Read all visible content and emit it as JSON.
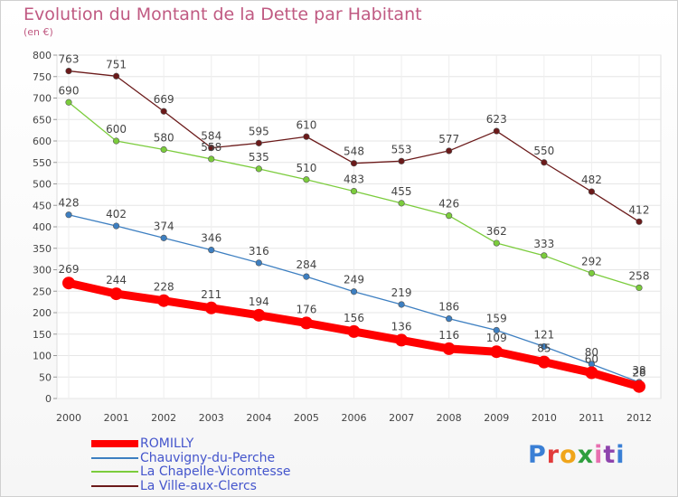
{
  "header": {
    "title": "Evolution du Montant de la Dette par Habitant",
    "subtitle": "(en €)"
  },
  "logo": {
    "text": "Proxiti",
    "colors": [
      "#3a7fd5",
      "#e23b3b",
      "#f0a51a",
      "#2e9e3e",
      "#e86fb0",
      "#8e44ad",
      "#3a7fd5"
    ]
  },
  "chart_data": {
    "type": "line",
    "title": "Evolution du Montant de la Dette par Habitant",
    "subtitle": "(en €)",
    "xlabel": "",
    "ylabel": "",
    "x": [
      "2000",
      "2001",
      "2002",
      "2003",
      "2004",
      "2005",
      "2006",
      "2007",
      "2008",
      "2009",
      "2010",
      "2011",
      "2012"
    ],
    "ylim": [
      0,
      800
    ],
    "yticks": [
      0,
      50,
      100,
      150,
      200,
      250,
      300,
      350,
      400,
      450,
      500,
      550,
      600,
      650,
      700,
      750,
      800
    ],
    "grid": true,
    "legend_position": "bottom-left",
    "series": [
      {
        "name": "ROMILLY",
        "color": "#ff0000",
        "values": [
          269,
          244,
          228,
          211,
          194,
          176,
          156,
          136,
          116,
          109,
          85,
          60,
          28
        ],
        "labels": [
          "269",
          "244",
          "228",
          "211",
          "194",
          "176",
          "156",
          "136",
          "116",
          "109",
          "85",
          "60",
          "28"
        ],
        "bold": true
      },
      {
        "name": "Chauvigny-du-Perche",
        "color": "#3d7fc1",
        "values": [
          428,
          402,
          374,
          346,
          316,
          284,
          249,
          219,
          186,
          159,
          121,
          80,
          38
        ],
        "labels": [
          "428",
          "402",
          "374",
          "346",
          "316",
          "284",
          "249",
          "219",
          "186",
          "159",
          "121",
          "80",
          "38"
        ],
        "bold": false
      },
      {
        "name": "La Chapelle-Vicomtesse",
        "color": "#7bcc3c",
        "values": [
          690,
          600,
          580,
          558,
          535,
          510,
          483,
          455,
          426,
          362,
          333,
          292,
          258
        ],
        "labels": [
          "690",
          "600",
          "580",
          "558",
          "535",
          "510",
          "483",
          "455",
          "426",
          "362",
          "333",
          "292",
          "258"
        ],
        "bold": false
      },
      {
        "name": "La Ville-aux-Clercs",
        "color": "#6b1a1a",
        "values": [
          763,
          751,
          669,
          584,
          595,
          610,
          548,
          553,
          577,
          623,
          550,
          482,
          412
        ],
        "labels": [
          "763",
          "751",
          "669",
          "584",
          "595",
          "610",
          "548",
          "553",
          "577",
          "623",
          "550",
          "482",
          "412"
        ],
        "bold": false
      }
    ]
  }
}
